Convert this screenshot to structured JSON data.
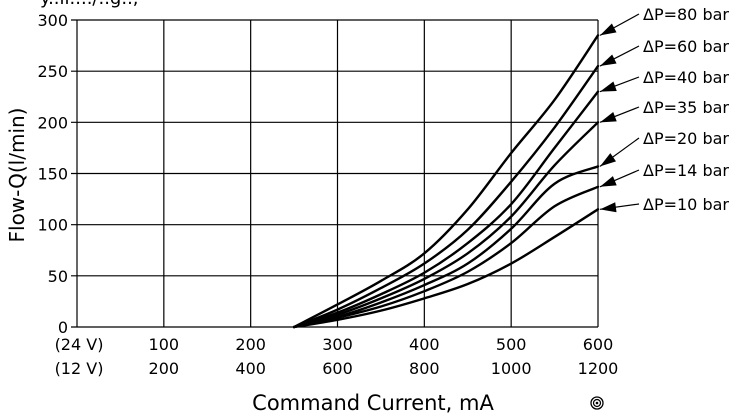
{
  "chart_data": {
    "type": "line",
    "title": "",
    "top_text_partial": "y..ll..../..g..,",
    "xlabel": "Command Current, mA",
    "ylabel": "Flow-Q(l/min)",
    "xlim": [
      0,
      600
    ],
    "ylim": [
      0,
      300
    ],
    "grid": true,
    "x_ticks_24v": [
      "(24 V)",
      "100",
      "200",
      "300",
      "400",
      "500",
      "600"
    ],
    "x_ticks_12v": [
      "(12 V)",
      "200",
      "400",
      "600",
      "800",
      "1000",
      "1200"
    ],
    "y_ticks": [
      "0",
      "50",
      "100",
      "150",
      "200",
      "250",
      "300"
    ],
    "legend_placement": "right (arrow-labelled curve ends)",
    "series": [
      {
        "name": "ΔP=80 bar",
        "x": [
          250,
          300,
          350,
          400,
          450,
          500,
          550,
          600
        ],
        "y": [
          0,
          22,
          45,
          72,
          115,
          170,
          222,
          285
        ]
      },
      {
        "name": "ΔP=60 bar",
        "x": [
          250,
          300,
          350,
          400,
          450,
          500,
          550,
          600
        ],
        "y": [
          0,
          17,
          38,
          62,
          95,
          142,
          195,
          255
        ]
      },
      {
        "name": "ΔP=40 bar",
        "x": [
          250,
          300,
          350,
          400,
          450,
          500,
          550,
          600
        ],
        "y": [
          0,
          14,
          32,
          53,
          82,
          120,
          175,
          230
        ]
      },
      {
        "name": "ΔP=35 bar",
        "x": [
          250,
          300,
          350,
          400,
          450,
          500,
          550,
          600
        ],
        "y": [
          0,
          12,
          28,
          47,
          72,
          108,
          158,
          200
        ]
      },
      {
        "name": "ΔP=20 bar",
        "x": [
          250,
          300,
          350,
          400,
          450,
          500,
          550,
          600
        ],
        "y": [
          0,
          10,
          24,
          41,
          62,
          96,
          140,
          157
        ]
      },
      {
        "name": "ΔP=14 bar",
        "x": [
          250,
          300,
          350,
          400,
          450,
          500,
          550,
          600
        ],
        "y": [
          0,
          9,
          20,
          35,
          54,
          82,
          118,
          137
        ]
      },
      {
        "name": "ΔP=10 bar",
        "x": [
          250,
          300,
          350,
          400,
          450,
          500,
          550,
          600
        ],
        "y": [
          0,
          7,
          16,
          28,
          42,
          62,
          88,
          115
        ]
      }
    ],
    "colors": {
      "line": "#000000",
      "grid": "#000000",
      "background": "#ffffff"
    },
    "icon": "target-icon"
  }
}
